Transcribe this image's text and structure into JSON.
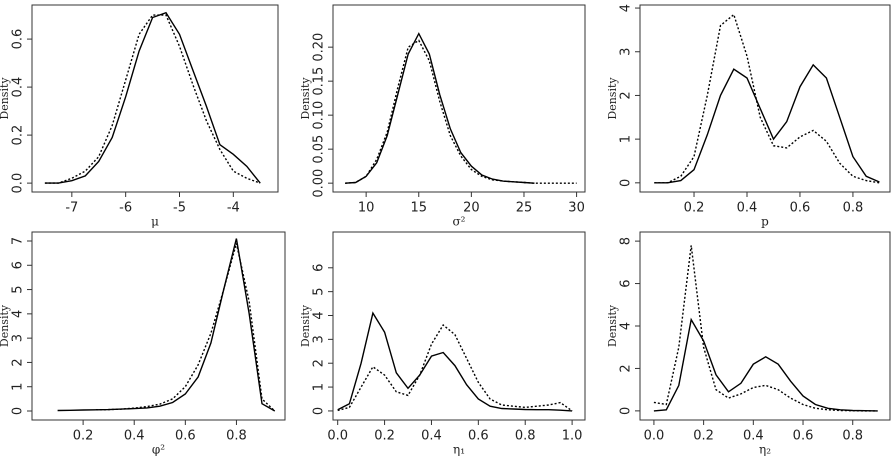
{
  "chart_data": [
    {
      "type": "line",
      "y_label": "Density",
      "x_label": "μ",
      "x": [
        -7.5,
        -7.25,
        -7.0,
        -6.75,
        -6.5,
        -6.25,
        -6.0,
        -5.75,
        -5.5,
        -5.25,
        -5.0,
        -4.75,
        -4.5,
        -4.25,
        -4.0,
        -3.75,
        -3.5
      ],
      "series": [
        {
          "color": "#000000",
          "dash": "solid",
          "values": [
            0.0,
            0.0,
            0.01,
            0.03,
            0.09,
            0.19,
            0.36,
            0.55,
            0.69,
            0.71,
            0.62,
            0.47,
            0.32,
            0.16,
            0.12,
            0.07,
            0.0
          ]
        },
        {
          "color": "#000000",
          "dash": "dotted",
          "values": [
            0.0,
            0.0,
            0.02,
            0.05,
            0.11,
            0.24,
            0.43,
            0.62,
            0.7,
            0.7,
            0.57,
            0.41,
            0.26,
            0.14,
            0.05,
            0.02,
            0.0
          ]
        }
      ],
      "xlim": [
        -7.74,
        -3.17
      ],
      "ylim": [
        -0.037,
        0.742
      ],
      "xticks": [
        -7,
        -6,
        -5,
        -4
      ],
      "yticks": [
        {
          "value": 0,
          "label": "0.0"
        },
        0.2,
        0.4,
        0.6
      ]
    },
    {
      "type": "line",
      "y_label": "Density",
      "x_label": "σ²",
      "x": [
        8,
        9,
        10,
        11,
        12,
        13,
        14,
        15,
        16,
        17,
        18,
        19,
        20,
        21,
        22,
        23,
        24,
        25,
        26,
        27,
        28,
        29,
        30
      ],
      "series": [
        {
          "color": "#000000",
          "dash": "solid",
          "values": [
            0.0,
            0.001,
            0.01,
            0.03,
            0.07,
            0.13,
            0.19,
            0.22,
            0.19,
            0.13,
            0.08,
            0.045,
            0.025,
            0.012,
            0.006,
            0.003,
            0.002,
            0.001,
            0.0,
            null,
            null,
            null,
            null
          ]
        },
        {
          "color": "#000000",
          "dash": "dotted",
          "values": [
            0.0,
            0.001,
            0.01,
            0.035,
            0.075,
            0.14,
            0.2,
            0.21,
            0.18,
            0.12,
            0.07,
            0.04,
            0.02,
            0.01,
            0.005,
            0.003,
            0.002,
            0.001,
            0.0,
            0.0,
            0.0,
            0.0,
            0.0
          ]
        }
      ],
      "xlim": [
        6.85,
        30.8
      ],
      "ylim": [
        -0.013,
        0.262
      ],
      "xticks": [
        10,
        15,
        20,
        25,
        30
      ],
      "yticks": [
        {
          "value": 0,
          "label": "0.00"
        },
        0.05,
        {
          "value": 0.1,
          "label": "0.10"
        },
        0.15,
        {
          "value": 0.2,
          "label": "0.20"
        }
      ]
    },
    {
      "type": "line",
      "y_label": "Density",
      "x_label": "p",
      "x": [
        0.05,
        0.1,
        0.15,
        0.2,
        0.25,
        0.3,
        0.35,
        0.4,
        0.45,
        0.5,
        0.55,
        0.6,
        0.65,
        0.7,
        0.75,
        0.8,
        0.85,
        0.9
      ],
      "series": [
        {
          "color": "#000000",
          "dash": "solid",
          "values": [
            0.0,
            0.0,
            0.05,
            0.3,
            1.1,
            2.0,
            2.6,
            2.4,
            1.7,
            1.0,
            1.4,
            2.2,
            2.7,
            2.4,
            1.5,
            0.6,
            0.15,
            0.02
          ]
        },
        {
          "color": "#000000",
          "dash": "dotted",
          "values": [
            0.0,
            0.0,
            0.15,
            0.6,
            2.0,
            3.6,
            3.85,
            2.9,
            1.5,
            0.85,
            0.8,
            1.05,
            1.2,
            0.95,
            0.45,
            0.15,
            0.05,
            0.0
          ]
        }
      ],
      "xlim": [
        -0.004,
        0.94
      ],
      "ylim": [
        -0.21,
        4.07
      ],
      "xticks": [
        0.2,
        0.4,
        0.6,
        0.8
      ],
      "yticks": [
        0,
        1,
        2,
        3,
        4
      ]
    },
    {
      "type": "line",
      "y_label": "Density",
      "x_label": "φ²",
      "x": [
        0.1,
        0.15,
        0.2,
        0.25,
        0.3,
        0.35,
        0.4,
        0.45,
        0.5,
        0.55,
        0.6,
        0.65,
        0.7,
        0.75,
        0.8,
        0.85,
        0.9,
        0.95
      ],
      "series": [
        {
          "color": "#000000",
          "dash": "solid",
          "values": [
            0.02,
            0.03,
            0.04,
            0.05,
            0.06,
            0.08,
            0.1,
            0.13,
            0.2,
            0.35,
            0.7,
            1.4,
            2.8,
            5.0,
            7.1,
            4.0,
            0.3,
            0.0
          ]
        },
        {
          "color": "#000000",
          "dash": "dotted",
          "values": [
            null,
            null,
            null,
            0.05,
            0.06,
            0.08,
            0.12,
            0.18,
            0.28,
            0.5,
            1.0,
            1.9,
            3.2,
            5.0,
            6.9,
            4.5,
            0.5,
            0.0
          ]
        }
      ],
      "xlim": [
        0.0,
        0.99
      ],
      "ylim": [
        -0.37,
        7.37
      ],
      "xticks": [
        0.2,
        0.4,
        0.6,
        0.8
      ],
      "yticks": [
        0,
        1,
        2,
        3,
        4,
        5,
        6,
        7
      ]
    },
    {
      "type": "line",
      "y_label": "Density",
      "x_label": "η₁",
      "x": [
        0.0,
        0.05,
        0.1,
        0.15,
        0.2,
        0.25,
        0.3,
        0.35,
        0.4,
        0.45,
        0.5,
        0.55,
        0.6,
        0.65,
        0.7,
        0.75,
        0.8,
        0.85,
        0.9,
        0.95,
        1.0
      ],
      "series": [
        {
          "color": "#000000",
          "dash": "solid",
          "values": [
            0.05,
            0.3,
            2.0,
            4.1,
            3.3,
            1.6,
            0.95,
            1.5,
            2.3,
            2.45,
            1.9,
            1.1,
            0.5,
            0.2,
            0.1,
            0.08,
            0.06,
            0.05,
            0.05,
            0.03,
            0.0
          ]
        },
        {
          "color": "#000000",
          "dash": "dotted",
          "values": [
            0.02,
            0.15,
            1.0,
            1.85,
            1.5,
            0.8,
            0.65,
            1.5,
            2.8,
            3.6,
            3.2,
            2.2,
            1.2,
            0.5,
            0.25,
            0.2,
            0.15,
            0.2,
            0.25,
            0.35,
            0.0
          ]
        }
      ],
      "xlim": [
        -0.02,
        1.055
      ],
      "ylim": [
        -0.38,
        7.5
      ],
      "xticks": [
        {
          "value": 0,
          "label": "0.0"
        },
        0.2,
        0.4,
        0.6,
        0.8,
        {
          "value": 1,
          "label": "1.0"
        }
      ],
      "yticks": [
        0,
        1,
        2,
        3,
        4,
        5,
        6
      ]
    },
    {
      "type": "line",
      "y_label": "Density",
      "x_label": "η₂",
      "x": [
        0.0,
        0.05,
        0.1,
        0.15,
        0.2,
        0.25,
        0.3,
        0.35,
        0.4,
        0.45,
        0.5,
        0.55,
        0.6,
        0.65,
        0.7,
        0.75,
        0.8,
        0.85,
        0.9
      ],
      "series": [
        {
          "color": "#000000",
          "dash": "solid",
          "values": [
            0.0,
            0.05,
            1.2,
            4.3,
            3.3,
            1.7,
            0.9,
            1.3,
            2.2,
            2.55,
            2.2,
            1.4,
            0.7,
            0.3,
            0.12,
            0.05,
            0.02,
            0.01,
            0.0
          ]
        },
        {
          "color": "#000000",
          "dash": "dotted",
          "values": [
            0.4,
            0.3,
            3.0,
            7.8,
            3.0,
            1.0,
            0.6,
            0.8,
            1.1,
            1.2,
            1.0,
            0.6,
            0.3,
            0.12,
            0.05,
            0.02,
            0.01,
            0.0,
            0.0
          ]
        }
      ],
      "xlim": [
        -0.056,
        0.95
      ],
      "ylim": [
        -0.43,
        8.43
      ],
      "xticks": [
        {
          "value": 0,
          "label": "0.0"
        },
        0.2,
        0.4,
        0.6,
        0.8
      ],
      "yticks": [
        0,
        2,
        4,
        6,
        8
      ]
    }
  ]
}
